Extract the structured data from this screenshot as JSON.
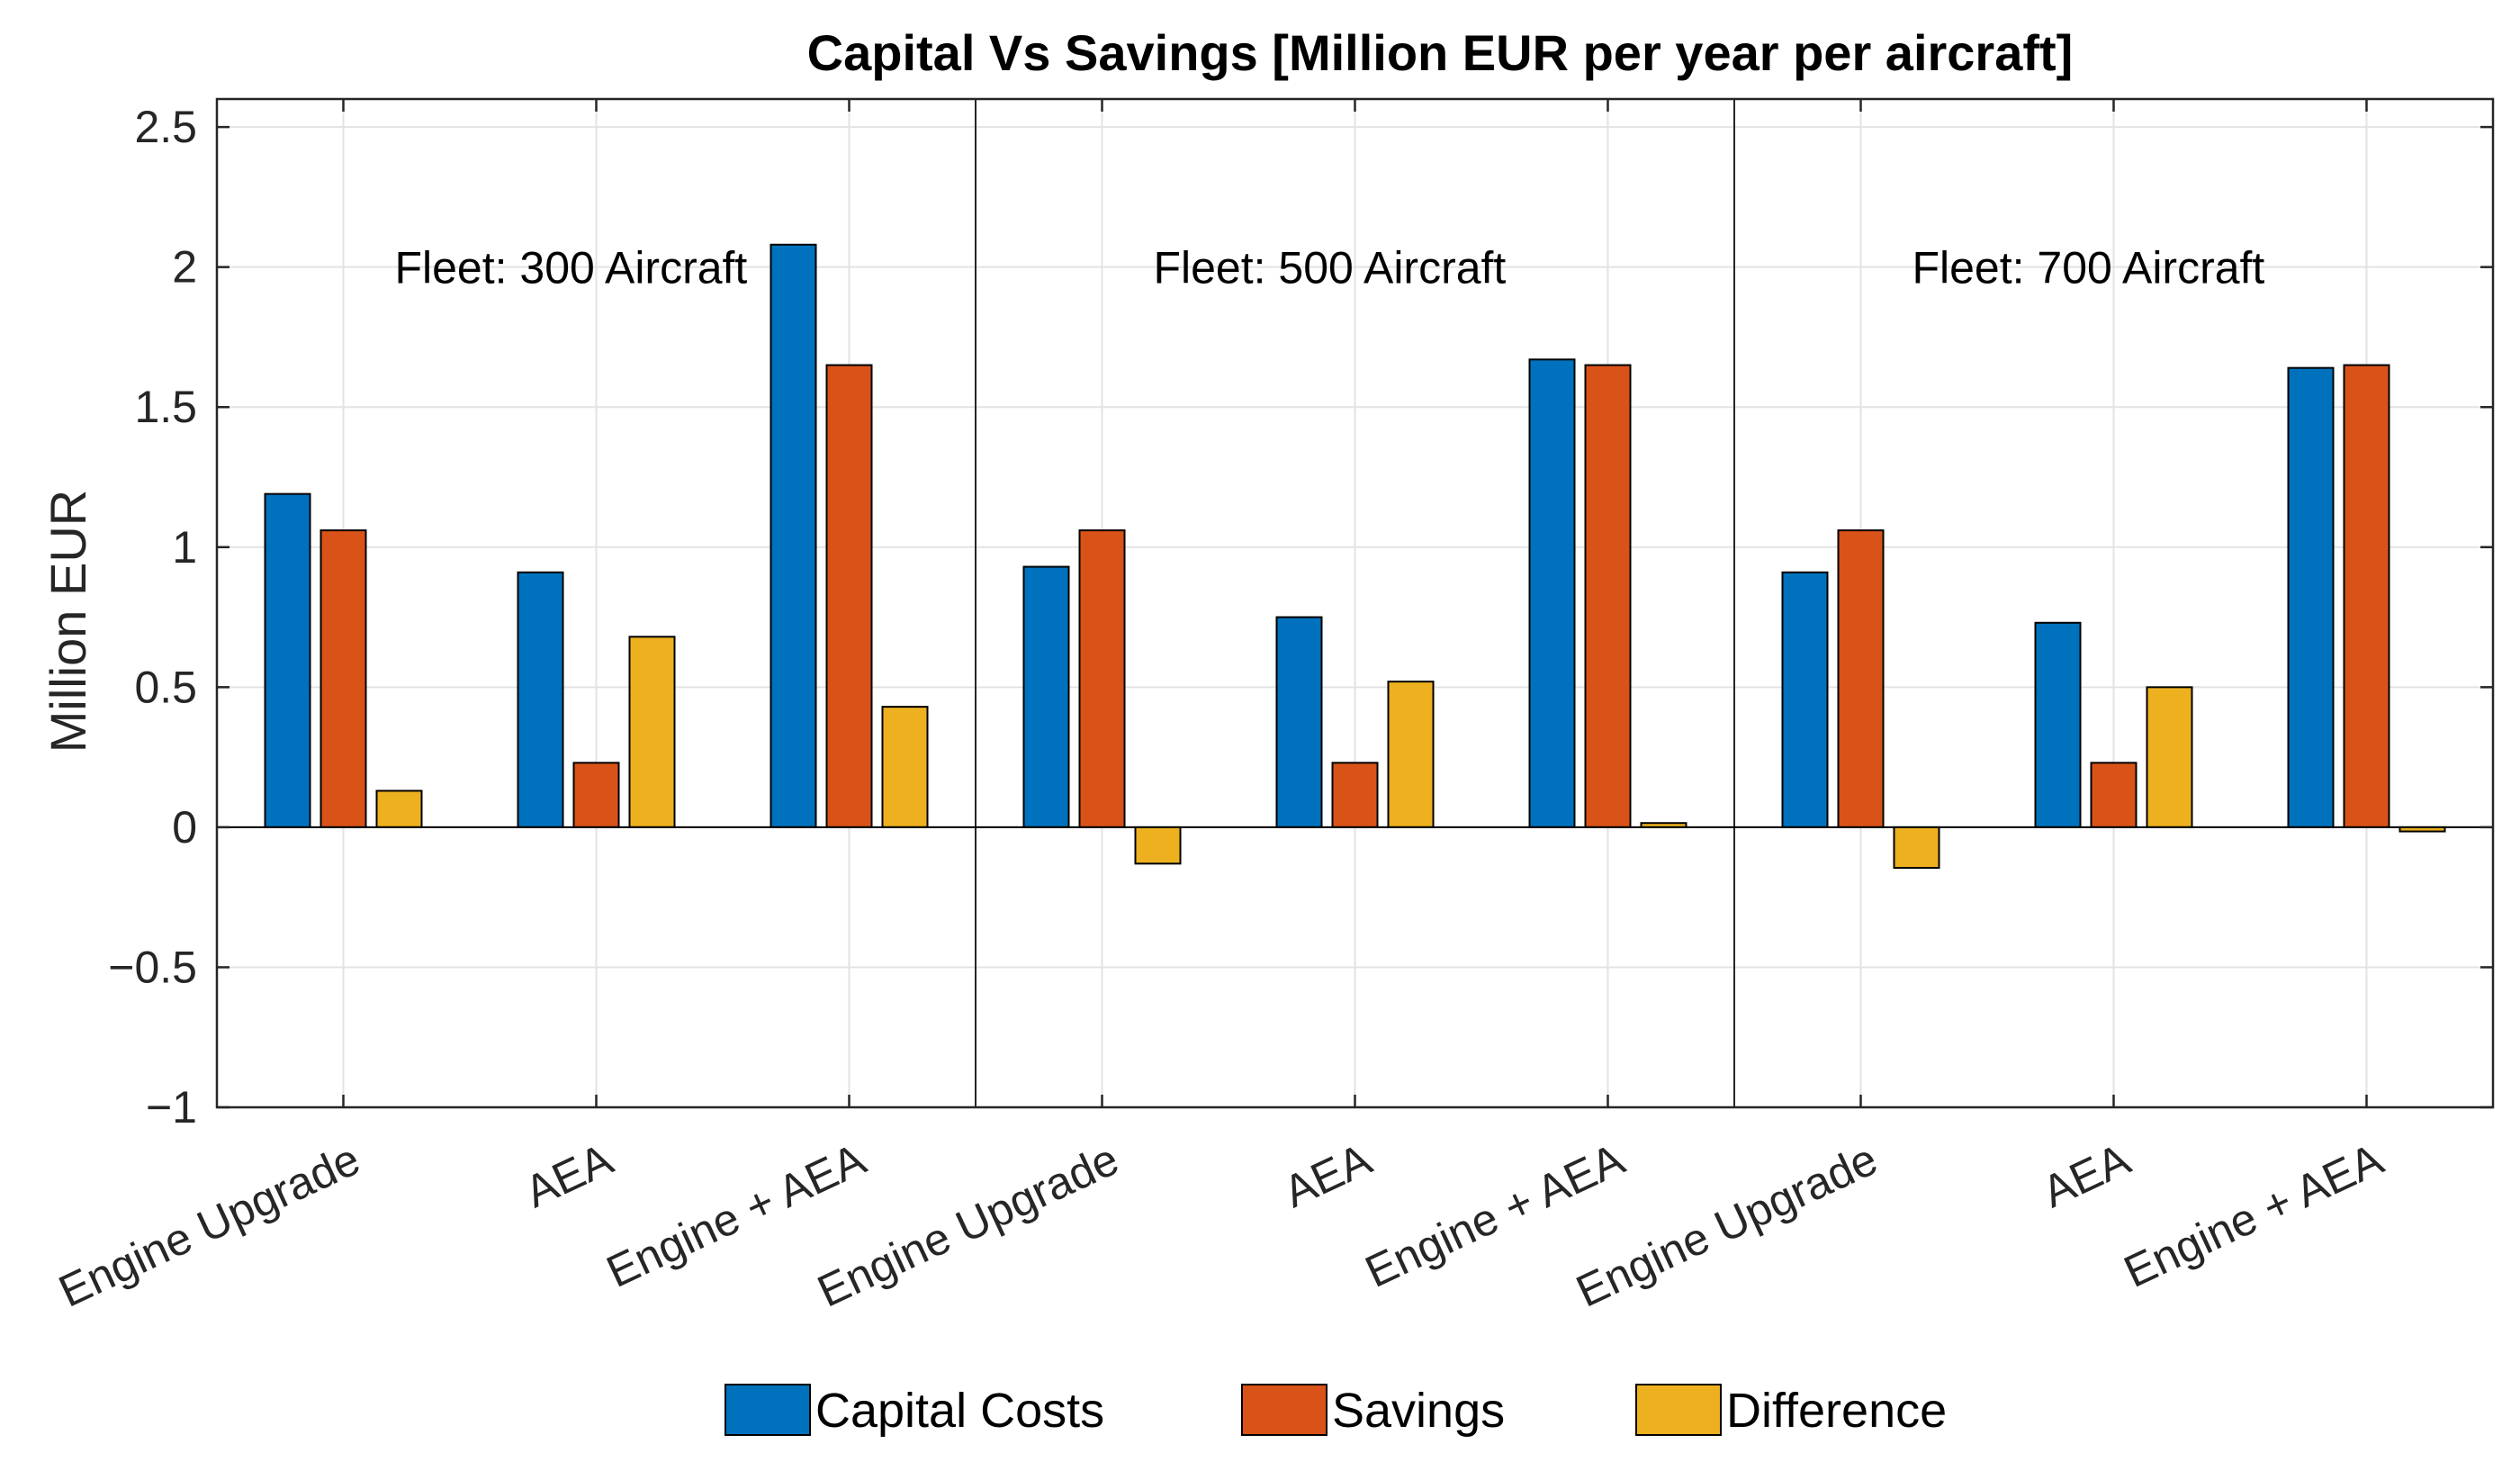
{
  "chart_data": {
    "type": "bar",
    "title": "Capital Vs Savings [Million EUR  per year per aircraft]",
    "ylabel": "Million EUR",
    "xlabel": "",
    "ylim": [
      -1,
      2.6
    ],
    "yticks": [
      -1,
      -0.5,
      0,
      0.5,
      1,
      1.5,
      2,
      2.5
    ],
    "ytick_labels": [
      "−1",
      "−0.5",
      "0",
      "0.5",
      "1",
      "1.5",
      "2",
      "2.5"
    ],
    "grid": true,
    "legend_position": "bottom",
    "categories": [
      "Engine Upgrade",
      "AEA",
      "Engine + AEA",
      "Engine Upgrade",
      "AEA",
      "Engine + AEA",
      "Engine Upgrade",
      "AEA",
      "Engine + AEA"
    ],
    "groups": [
      {
        "label": "Fleet: 300 Aircraft",
        "categories": [
          0,
          1,
          2
        ]
      },
      {
        "label": "Fleet: 500 Aircraft",
        "categories": [
          3,
          4,
          5
        ]
      },
      {
        "label": "Fleet: 700 Aircraft",
        "categories": [
          6,
          7,
          8
        ]
      }
    ],
    "series": [
      {
        "name": "Capital Costs",
        "color": "#0072BD",
        "values": [
          1.19,
          0.91,
          2.08,
          0.93,
          0.75,
          1.67,
          0.91,
          0.73,
          1.64
        ]
      },
      {
        "name": "Savings",
        "color": "#D95319",
        "values": [
          1.06,
          0.23,
          1.65,
          1.06,
          0.23,
          1.65,
          1.06,
          0.23,
          1.65
        ]
      },
      {
        "name": "Difference",
        "color": "#EDB120",
        "values": [
          0.13,
          0.68,
          0.43,
          -0.13,
          0.52,
          0.015,
          -0.145,
          0.5,
          -0.015
        ]
      }
    ]
  }
}
